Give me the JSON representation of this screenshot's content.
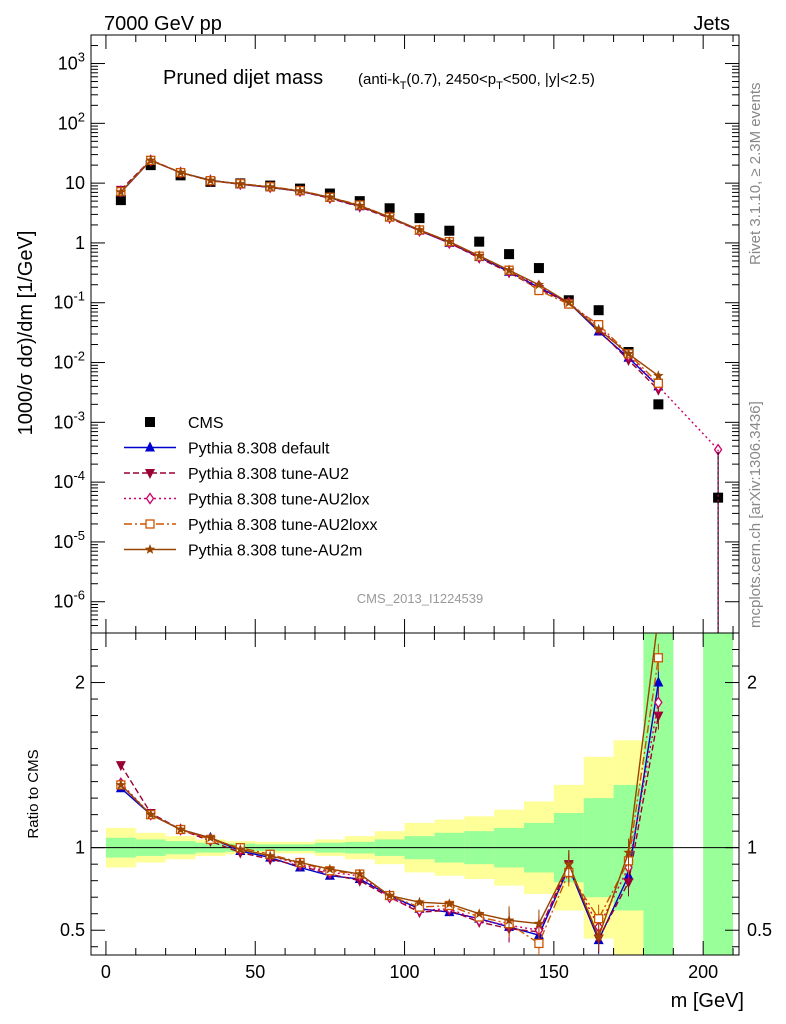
{
  "header": {
    "left": "7000 GeV pp",
    "right": "Jets",
    "side_top": "Rivet 3.1.10, ≥ 2.3M events",
    "side_bottom": "mcplots.cern.ch [arXiv:1306.3436]",
    "watermark": "CMS_2013_I1224539"
  },
  "chart_data": [
    {
      "type": "line",
      "title": "Pruned dijet mass",
      "subtitle": "(anti-kT(0.7), 2450<pT<500, |y|<2.5)",
      "xlabel": "m [GeV]",
      "ylabel": "1000/σ dσ)/dm [1/GeV]",
      "yscale": "log",
      "ylim": [
        3e-07,
        3000
      ],
      "xlim": [
        -5,
        212
      ],
      "legend_position": "lower-left",
      "x": [
        5,
        15,
        25,
        35,
        45,
        55,
        65,
        75,
        85,
        95,
        105,
        115,
        125,
        135,
        145,
        155,
        165,
        175,
        185,
        205
      ],
      "series": [
        {
          "name": "CMS",
          "color": "#000000",
          "marker": "square",
          "style": "points",
          "values": [
            5.2,
            20,
            13.5,
            10.5,
            9.9,
            9.1,
            8.1,
            6.7,
            5.0,
            3.8,
            2.6,
            1.6,
            1.05,
            0.65,
            0.38,
            0.11,
            0.075,
            0.015,
            0.002,
            5.5e-05
          ]
        },
        {
          "name": "Pythia 8.308 default",
          "color": "#0000cc",
          "marker": "triangle",
          "style": "solid",
          "values": [
            7.0,
            24.0,
            15.0,
            11.2,
            9.6,
            8.5,
            7.3,
            5.7,
            4.1,
            2.7,
            1.6,
            1.0,
            0.58,
            0.33,
            0.18,
            0.1,
            0.033,
            0.012,
            0.004,
            null
          ]
        },
        {
          "name": "Pythia 8.308 tune-AU2",
          "color": "#990033",
          "marker": "triangle-down",
          "style": "dashed",
          "values": [
            7.7,
            24.5,
            15.0,
            11.0,
            9.6,
            8.5,
            7.3,
            5.6,
            4.0,
            2.6,
            1.6,
            1.0,
            0.56,
            0.32,
            0.17,
            0.1,
            0.035,
            0.011,
            0.0035,
            null
          ]
        },
        {
          "name": "Pythia 8.308 tune-AU2lox",
          "color": "#cc0066",
          "marker": "diamond-open",
          "style": "dotted",
          "values": [
            7.3,
            24.0,
            15.0,
            11.0,
            9.7,
            8.6,
            7.4,
            5.7,
            4.2,
            2.7,
            1.6,
            1.0,
            0.59,
            0.34,
            0.19,
            0.1,
            0.04,
            0.013,
            0.004,
            0.00035
          ]
        },
        {
          "name": "Pythia 8.308 tune-AU2loxx",
          "color": "#cc5500",
          "marker": "square-open",
          "style": "dashdot",
          "values": [
            7.2,
            24.0,
            15.0,
            11.0,
            9.8,
            8.7,
            7.5,
            5.8,
            4.3,
            2.7,
            1.65,
            1.05,
            0.6,
            0.35,
            0.16,
            0.095,
            0.043,
            0.014,
            0.0045,
            null
          ]
        },
        {
          "name": "Pythia 8.308 tune-AU2m",
          "color": "#994400",
          "marker": "star",
          "style": "solid",
          "values": [
            7.1,
            24.0,
            15.0,
            11.1,
            9.7,
            8.6,
            7.4,
            5.8,
            4.2,
            2.7,
            1.65,
            1.05,
            0.61,
            0.35,
            0.2,
            0.1,
            0.036,
            0.014,
            0.006,
            null
          ]
        }
      ]
    },
    {
      "type": "line",
      "ylabel": "Ratio to CMS",
      "xlabel": "m [GeV]",
      "ylim": [
        0.35,
        2.3
      ],
      "xlim": [
        -5,
        212
      ],
      "yticks": [
        "0.5",
        "1",
        "2"
      ],
      "xticks": [
        "0",
        "50",
        "100",
        "150",
        "200"
      ],
      "bands": {
        "edges": [
          0,
          10,
          20,
          30,
          40,
          50,
          60,
          70,
          80,
          90,
          100,
          110,
          120,
          130,
          140,
          150,
          160,
          170,
          180,
          190,
          200,
          210
        ],
        "yellow_lo": [
          0.88,
          0.91,
          0.93,
          0.95,
          0.96,
          0.965,
          0.965,
          0.95,
          0.93,
          0.9,
          0.85,
          0.83,
          0.81,
          0.77,
          0.72,
          0.62,
          0.45,
          0.35,
          0.35,
          null,
          0.35
        ],
        "yellow_hi": [
          1.12,
          1.09,
          1.07,
          1.05,
          1.04,
          1.035,
          1.035,
          1.05,
          1.07,
          1.1,
          1.15,
          1.17,
          1.19,
          1.23,
          1.28,
          1.38,
          1.55,
          1.65,
          2.3,
          null,
          2.3
        ],
        "green_lo": [
          0.94,
          0.95,
          0.96,
          0.97,
          0.975,
          0.98,
          0.98,
          0.97,
          0.965,
          0.95,
          0.93,
          0.91,
          0.9,
          0.88,
          0.85,
          0.79,
          0.7,
          0.62,
          0.35,
          null,
          0.35
        ],
        "green_hi": [
          1.06,
          1.05,
          1.04,
          1.03,
          1.025,
          1.02,
          1.02,
          1.03,
          1.035,
          1.05,
          1.07,
          1.09,
          1.1,
          1.12,
          1.15,
          1.21,
          1.3,
          1.38,
          2.3,
          null,
          2.3
        ]
      },
      "x": [
        5,
        15,
        25,
        35,
        45,
        55,
        65,
        75,
        85,
        95,
        105,
        115,
        125,
        135,
        145,
        155,
        165,
        175,
        185
      ],
      "series": [
        {
          "name": "Pythia 8.308 default",
          "color": "#0000cc",
          "marker": "triangle",
          "style": "solid",
          "values": [
            1.36,
            1.2,
            1.11,
            1.06,
            0.98,
            0.94,
            0.88,
            0.83,
            0.81,
            0.71,
            0.63,
            0.61,
            0.57,
            0.52,
            0.47,
            0.88,
            0.44,
            0.83,
            2.0
          ]
        },
        {
          "name": "Pythia 8.308 tune-AU2",
          "color": "#990033",
          "marker": "triangle-down",
          "style": "dashed",
          "values": [
            1.5,
            1.21,
            1.11,
            1.04,
            0.97,
            0.93,
            0.89,
            0.84,
            0.8,
            0.7,
            0.61,
            0.62,
            0.55,
            0.51,
            0.49,
            0.9,
            0.45,
            0.79,
            1.8
          ]
        },
        {
          "name": "Pythia 8.308 tune-AU2lox",
          "color": "#cc0066",
          "marker": "diamond-open",
          "style": "dotted",
          "values": [
            1.39,
            1.2,
            1.11,
            1.05,
            0.99,
            0.95,
            0.9,
            0.85,
            0.83,
            0.7,
            0.62,
            0.63,
            0.56,
            0.53,
            0.5,
            0.87,
            0.52,
            0.88,
            1.88
          ]
        },
        {
          "name": "Pythia 8.308 tune-AU2loxx",
          "color": "#cc5500",
          "marker": "square-open",
          "style": "dashdot",
          "values": [
            1.38,
            1.2,
            1.11,
            1.05,
            1.0,
            0.96,
            0.91,
            0.86,
            0.84,
            0.71,
            0.64,
            0.65,
            0.58,
            0.54,
            0.42,
            0.85,
            0.57,
            0.92,
            2.15
          ]
        },
        {
          "name": "Pythia 8.308 tune-AU2m",
          "color": "#994400",
          "marker": "star",
          "style": "solid",
          "values": [
            1.38,
            1.2,
            1.11,
            1.06,
            0.99,
            0.95,
            0.91,
            0.87,
            0.84,
            0.71,
            0.67,
            0.66,
            0.6,
            0.56,
            0.54,
            0.9,
            0.46,
            0.97,
            2.4
          ]
        }
      ]
    }
  ]
}
